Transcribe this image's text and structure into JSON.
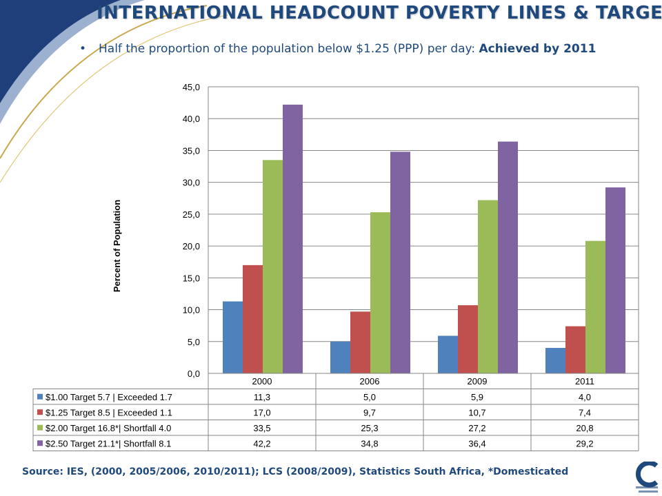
{
  "slide": {
    "title": "INTERNATIONAL HEADCOUNT POVERTY LINES & TARGETS",
    "bullet_text": "Half the proportion of the population below $1.25 (PPP) per day: ",
    "bullet_bold": "Achieved by 2011",
    "source": "Source: IES, (2000, 2005/2006, 2010/2011); LCS (2008/2009), Statistics South Africa, *Domesticated"
  },
  "chart_data": {
    "type": "bar",
    "title": "",
    "xlabel": "",
    "ylabel": "Percent of Population",
    "categories": [
      "2000",
      "2006",
      "2009",
      "2011"
    ],
    "ylim": [
      0,
      45
    ],
    "yticks": [
      "0,0",
      "5,0",
      "10,0",
      "15,0",
      "20,0",
      "25,0",
      "30,0",
      "35,0",
      "40,0",
      "45,0"
    ],
    "grid": true,
    "legend": "data-table-below",
    "series": [
      {
        "name": "$1.00  Target 5.7 | Exceeded 1.7",
        "color": "#4f81bd",
        "values": [
          11.3,
          5.0,
          5.9,
          4.0
        ],
        "labels": [
          "11,3",
          "5,0",
          "5,9",
          "4,0"
        ]
      },
      {
        "name": "$1.25  Target 8.5 | Exceeded 1.1",
        "color": "#c0504d",
        "values": [
          17.0,
          9.7,
          10.7,
          7.4
        ],
        "labels": [
          "17,0",
          "9,7",
          "10,7",
          "7,4"
        ]
      },
      {
        "name": "$2.00  Target 16.8*| Shortfall 4.0",
        "color": "#9bbb59",
        "values": [
          33.5,
          25.3,
          27.2,
          20.8
        ],
        "labels": [
          "33,5",
          "25,3",
          "27,2",
          "20,8"
        ]
      },
      {
        "name": "$2.50  Target 21.1*| Shortfall 8.1",
        "color": "#8064a2",
        "values": [
          42.2,
          34.8,
          36.4,
          29.2
        ],
        "labels": [
          "42,2",
          "34,8",
          "36,4",
          "29,2"
        ]
      }
    ]
  },
  "theme": {
    "title_color": "#1f497d",
    "swoosh_blue": "#1f3f7a",
    "swoosh_gold": "#c9a84c",
    "grid_color": "#868686"
  }
}
